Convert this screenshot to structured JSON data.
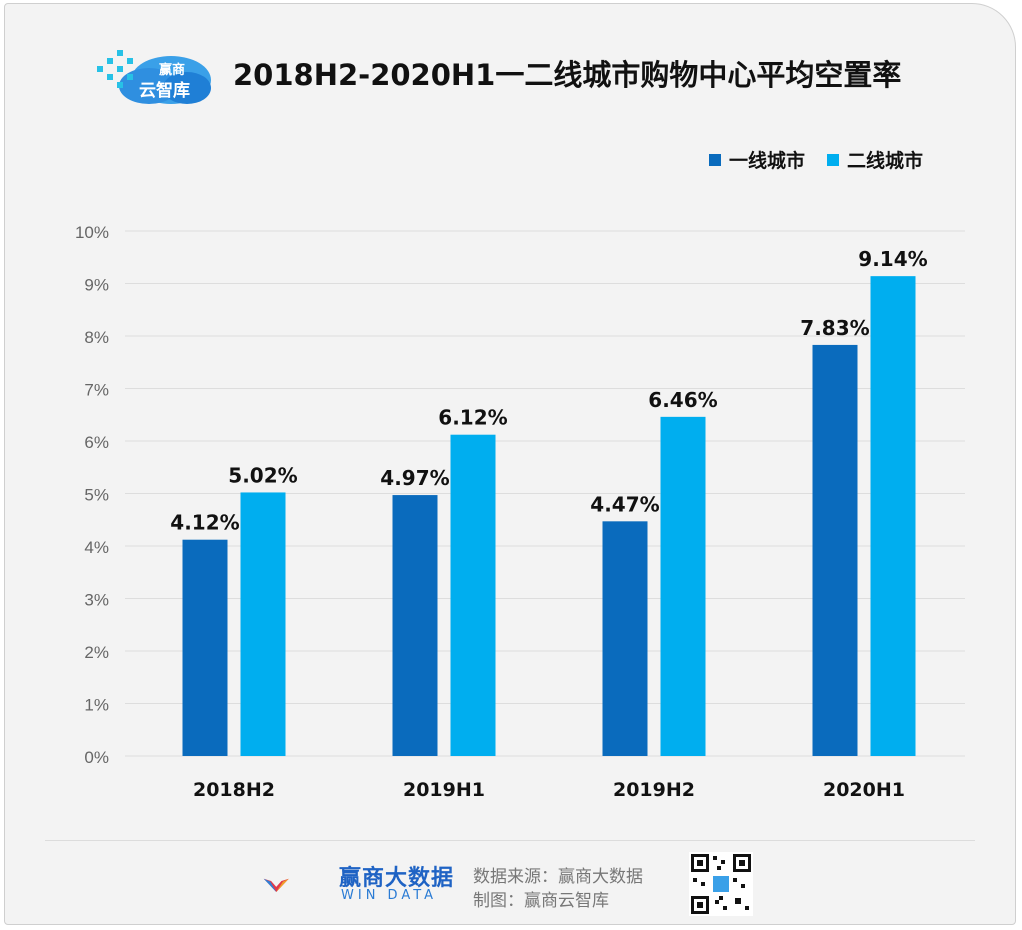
{
  "header": {
    "logo_text_top": "赢商",
    "logo_text_bottom": "云智库",
    "title": "2018H2-2020H1一二线城市购物中心平均空置率"
  },
  "colors": {
    "series1": "#0a6bbd",
    "series2": "#00aeef",
    "grid": "#dddddd",
    "axis_text": "#666666"
  },
  "chart_data": {
    "type": "bar",
    "title": "2018H2-2020H1一二线城市购物中心平均空置率",
    "categories": [
      "2018H2",
      "2019H1",
      "2019H2",
      "2020H1"
    ],
    "series": [
      {
        "name": "一线城市",
        "values": [
          4.12,
          4.97,
          4.47,
          7.83
        ],
        "labels": [
          "4.12%",
          "4.97%",
          "4.47%",
          "7.83%"
        ]
      },
      {
        "name": "二线城市",
        "values": [
          5.02,
          6.12,
          6.46,
          9.14
        ],
        "labels": [
          "5.02%",
          "6.12%",
          "6.46%",
          "9.14%"
        ]
      }
    ],
    "yticks": [
      "0%",
      "1%",
      "2%",
      "3%",
      "4%",
      "5%",
      "6%",
      "7%",
      "8%",
      "9%",
      "10%"
    ],
    "ylim": [
      0,
      10
    ],
    "grid": true,
    "legend": "top-right",
    "xlabel": "",
    "ylabel": ""
  },
  "footer": {
    "brand_name": "赢商大数据",
    "brand_sub": "WIN DATA",
    "source": "数据来源：赢商大数据",
    "made_by": "制图：赢商云智库"
  }
}
